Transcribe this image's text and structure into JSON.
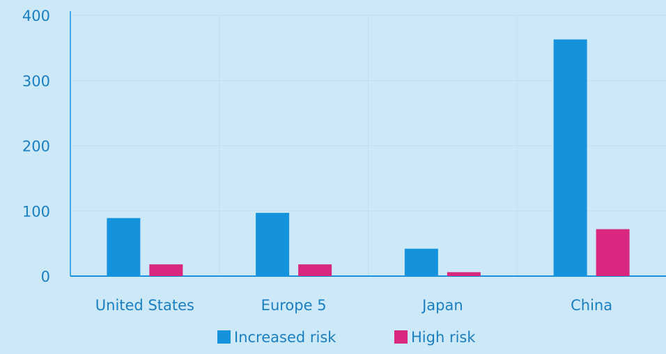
{
  "chart_data": {
    "type": "bar",
    "title": "",
    "xlabel": "",
    "ylabel": "",
    "categories": [
      "United States",
      "Europe 5",
      "Japan",
      "China"
    ],
    "series": [
      {
        "name": "Increased risk",
        "values": [
          89,
          97,
          42,
          363
        ],
        "color": "#1592dc"
      },
      {
        "name": "High risk",
        "values": [
          18,
          18,
          6,
          72
        ],
        "color": "#d9267f"
      }
    ],
    "y_ticks": [
      "0",
      "100",
      "200",
      "300",
      "400"
    ],
    "ylim": [
      0,
      400
    ],
    "grid": "vertical",
    "legend_placement": "bottom-center",
    "colors": {
      "background": "#cde9f8",
      "axis": "#1592dc",
      "text": "#1a7fc0",
      "grid": "#bfdff2"
    }
  }
}
